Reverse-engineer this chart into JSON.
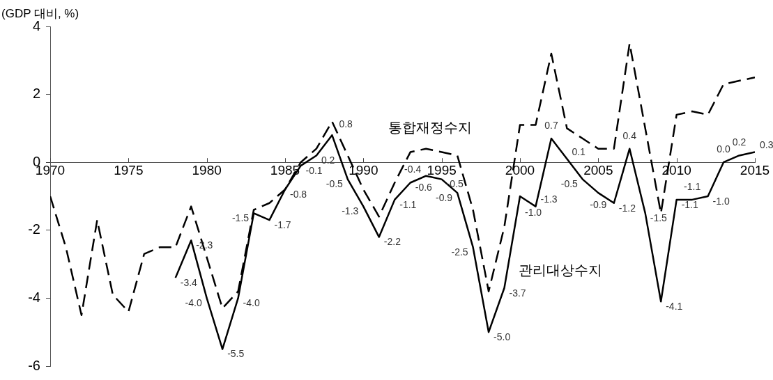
{
  "chart_data": {
    "type": "line",
    "ylabel": "(GDP 대비, %)",
    "xlim": [
      1970,
      2015
    ],
    "xticks": [
      1970,
      1975,
      1980,
      1985,
      1990,
      1995,
      2000,
      2005,
      2010,
      2015
    ],
    "ylim": [
      -6,
      4
    ],
    "yticks": [
      -6,
      -4,
      -2,
      0,
      2,
      4
    ],
    "grid": false,
    "legend": false,
    "marker": "none",
    "series": [
      {
        "name": "통합재정수지",
        "color": "#000000",
        "line_style": "dashed",
        "x": [
          1970,
          1971,
          1972,
          1973,
          1974,
          1975,
          1976,
          1977,
          1978,
          1979,
          1980,
          1981,
          1982,
          1983,
          1984,
          1985,
          1986,
          1987,
          1988,
          1989,
          1990,
          1991,
          1992,
          1993,
          1994,
          1995,
          1996,
          1997,
          1998,
          1999,
          2000,
          2001,
          2002,
          2003,
          2004,
          2005,
          2006,
          2007,
          2008,
          2009,
          2010,
          2011,
          2012,
          2013,
          2014,
          2015
        ],
        "values": [
          -1.0,
          -2.5,
          -4.5,
          -1.7,
          -3.9,
          -4.4,
          -2.7,
          -2.5,
          -2.5,
          -1.3,
          -2.8,
          -4.3,
          -3.8,
          -1.4,
          -1.2,
          -0.8,
          0.0,
          0.4,
          1.2,
          0.2,
          -0.8,
          -1.6,
          -0.6,
          0.3,
          0.4,
          0.3,
          0.2,
          -1.4,
          -3.8,
          -1.9,
          1.1,
          1.1,
          3.2,
          1.0,
          0.7,
          0.4,
          0.4,
          3.5,
          1.0,
          -1.5,
          1.4,
          1.5,
          1.4,
          2.3,
          2.4,
          2.5
        ]
      },
      {
        "name": "관리대상수지",
        "color": "#000000",
        "line_style": "solid",
        "x": [
          1978,
          1979,
          1980,
          1981,
          1982,
          1983,
          1984,
          1985,
          1986,
          1987,
          1988,
          1989,
          1990,
          1991,
          1992,
          1993,
          1994,
          1995,
          1996,
          1997,
          1998,
          1999,
          2000,
          2001,
          2002,
          2003,
          2004,
          2005,
          2006,
          2007,
          2008,
          2009,
          2010,
          2011,
          2012,
          2013,
          2014,
          2015
        ],
        "values": [
          -3.4,
          -2.3,
          -4.0,
          -5.5,
          -4.0,
          -1.5,
          -1.7,
          -0.8,
          -0.1,
          0.2,
          0.8,
          -0.5,
          -1.3,
          -2.2,
          -1.1,
          -0.6,
          -0.4,
          -0.5,
          -0.9,
          -2.5,
          -5.0,
          -3.7,
          -1.0,
          -1.3,
          0.7,
          0.1,
          -0.5,
          -0.9,
          -1.2,
          0.4,
          -1.5,
          -4.1,
          -1.1,
          -1.1,
          -1.0,
          0.0,
          0.2,
          0.3
        ],
        "value_labels": [
          "-3.4",
          "-2.3",
          "-4.0",
          "-5.5",
          "-4.0",
          "-1.5",
          "-1.7",
          "-0.8",
          "-0.1",
          "0.2",
          "0.8",
          "-0.5",
          "-1.3",
          "-2.2",
          "-1.1",
          "-0.6",
          "-0.4",
          "-0.5",
          "-0.9",
          "-2.5",
          "-5.0",
          "-3.7",
          "-1.0",
          "-1.3",
          "0.7",
          "0.1",
          "-0.5",
          "-0.9",
          "-1.2",
          "0.4",
          "-1.5",
          "-4.1",
          "-1.1",
          "-1.1",
          "-1.0",
          "0.0",
          "0.2",
          "0.3"
        ]
      }
    ]
  }
}
